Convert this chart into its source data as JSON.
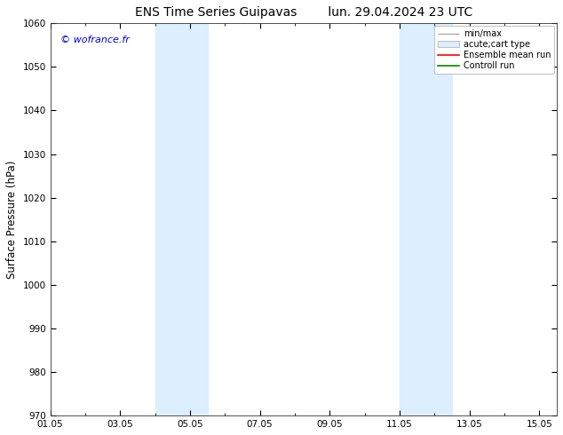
{
  "title_left": "ENS Time Series Guipavas",
  "title_right": "lun. 29.04.2024 23 UTC",
  "ylabel": "Surface Pressure (hPa)",
  "ylim": [
    970,
    1060
  ],
  "yticks": [
    970,
    980,
    990,
    1000,
    1010,
    1020,
    1030,
    1040,
    1050,
    1060
  ],
  "xlim": [
    1,
    15.5
  ],
  "xtick_positions": [
    1,
    3,
    5,
    7,
    9,
    11,
    13,
    15
  ],
  "xtick_labels": [
    "01.05",
    "03.05",
    "05.05",
    "07.05",
    "09.05",
    "11.05",
    "13.05",
    "15.05"
  ],
  "shade_bands": [
    {
      "start": 4.0,
      "end": 5.5,
      "color": "#ddeeff"
    },
    {
      "start": 11.0,
      "end": 12.5,
      "color": "#ddeeff"
    }
  ],
  "background_color": "#ffffff",
  "plot_bg_color": "#ffffff",
  "watermark": "© wofrance.fr",
  "watermark_color": "#0000cc",
  "legend_entries": [
    {
      "label": "min/max",
      "color": "#aaaaaa",
      "style": "minmax"
    },
    {
      "label": "acute;cart type",
      "color": "#cccccc",
      "style": "box"
    },
    {
      "label": "Ensemble mean run",
      "color": "#ff0000",
      "style": "line"
    },
    {
      "label": "Controll run",
      "color": "#008800",
      "style": "line"
    }
  ],
  "title_fontsize": 10,
  "tick_fontsize": 7.5,
  "ylabel_fontsize": 8.5,
  "watermark_fontsize": 8,
  "legend_fontsize": 7
}
